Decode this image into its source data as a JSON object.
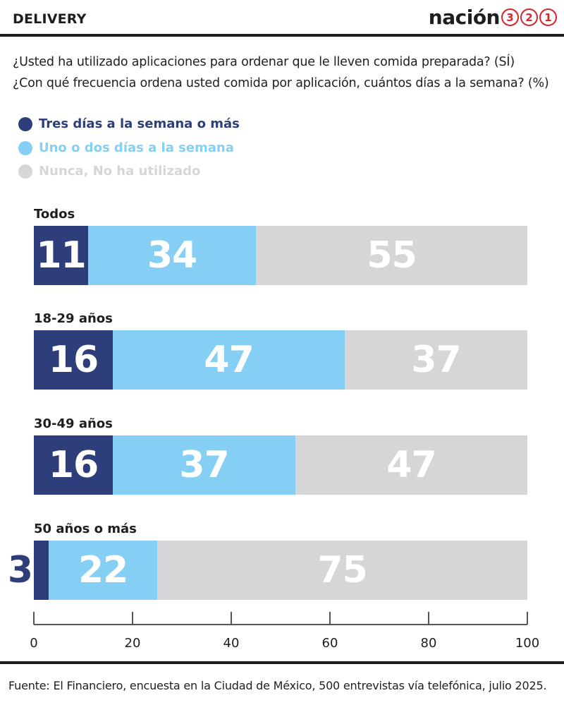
{
  "header": {
    "section": "DELIVERY",
    "brand_word": "nación",
    "brand_digits": [
      "3",
      "2",
      "1"
    ]
  },
  "questions": [
    "¿Usted ha utilizado aplicaciones para ordenar que le lleven comida preparada? (SÍ)",
    "¿Con qué frecuencia ordena usted comida por aplicación, cuántos días a la semana? (%)"
  ],
  "colors": {
    "dark_blue": "#2d3e7a",
    "light_blue": "#86cff4",
    "gray": "#d6d6d8",
    "text": "#1e1e1e"
  },
  "chart_data": {
    "type": "bar",
    "orientation": "horizontal",
    "stacked": true,
    "categories": [
      "Todos",
      "18-29 años",
      "30-49 años",
      "50 años o más"
    ],
    "series": [
      {
        "name": "Tres días a la semana o más",
        "color": "#2d3e7a",
        "values": [
          11,
          16,
          16,
          3
        ]
      },
      {
        "name": "Uno o dos días a la semana",
        "color": "#86cff4",
        "values": [
          34,
          47,
          37,
          22
        ]
      },
      {
        "name": "Nunca, No ha utilizado",
        "color": "#d6d6d8",
        "values": [
          55,
          37,
          47,
          75
        ]
      }
    ],
    "xlim": [
      0,
      100
    ],
    "xticks": [
      "0",
      "20",
      "40",
      "60",
      "80",
      "100"
    ],
    "legend_position": "top-left",
    "grid": false
  },
  "footer": {
    "source": "Fuente: El Financiero, encuesta en la Ciudad de México, 500 entrevistas vía telefónica, julio 2025."
  }
}
